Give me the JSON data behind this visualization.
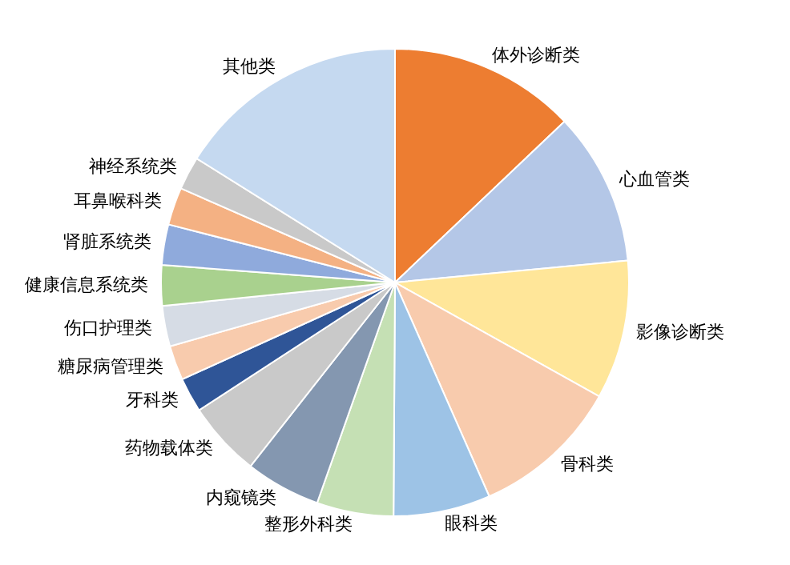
{
  "chart_data": {
    "type": "pie",
    "categories": [
      "体外诊断类",
      "心血管类",
      "影像诊断类",
      "骨科类",
      "眼科类",
      "整形外科类",
      "内窥镜类",
      "药物载体类",
      "牙科类",
      "糖尿病管理类",
      "伤口护理类",
      "健康信息系统类",
      "肾脏系统类",
      "耳鼻喉科类",
      "神经系统类",
      "其他类"
    ],
    "values": [
      12.9,
      10.6,
      9.6,
      10.3,
      6.7,
      5.3,
      5.2,
      5.2,
      2.4,
      2.4,
      2.8,
      2.8,
      2.8,
      2.6,
      2.3,
      16.1
    ],
    "colors": [
      "#ed7d31",
      "#b4c7e7",
      "#ffe699",
      "#f8cbad",
      "#9dc3e6",
      "#c5e0b4",
      "#8497b0",
      "#c9c9c9",
      "#2f5597",
      "#f8cbad",
      "#d6dce5",
      "#a9d18e",
      "#8faadc",
      "#f4b183",
      "#c9c9c9",
      "#c5d9f0"
    ]
  }
}
